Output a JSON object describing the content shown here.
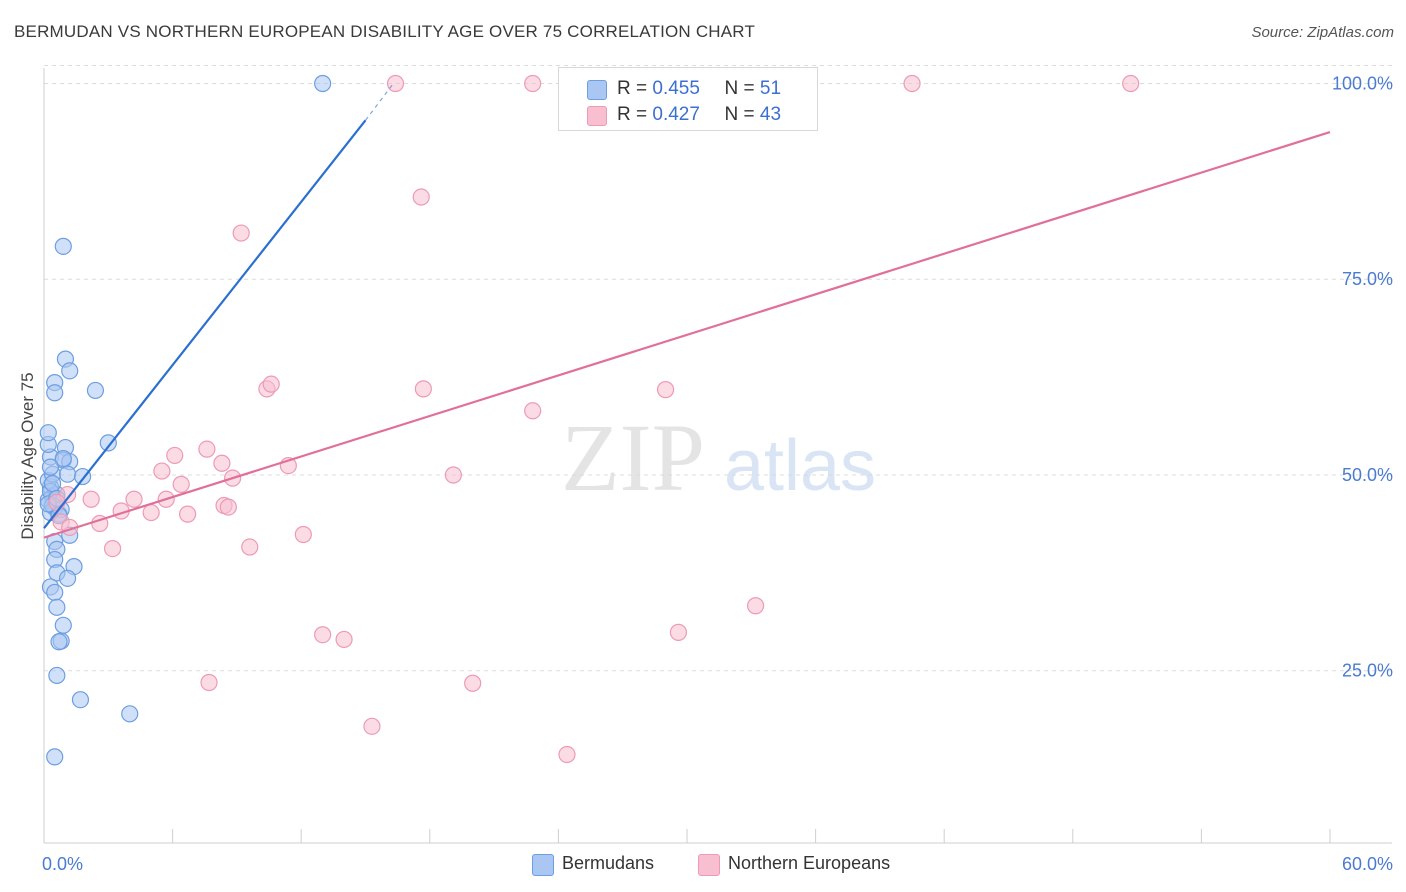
{
  "title": "BERMUDAN VS NORTHERN EUROPEAN DISABILITY AGE OVER 75 CORRELATION CHART",
  "source": "Source: ZipAtlas.com",
  "watermark": {
    "zip": "ZIP",
    "atlas": "atlas"
  },
  "legend_stats": {
    "r_label": "R =",
    "n_label": "N =",
    "rows": [
      {
        "r": "0.455",
        "n": "51"
      },
      {
        "r": "0.427",
        "n": "43"
      }
    ]
  },
  "chart_data": {
    "type": "scatter",
    "title": "BERMUDAN VS NORTHERN EUROPEAN DISABILITY AGE OVER 75 CORRELATION CHART",
    "ylabel": "Disability Age Over 75",
    "xlabel": "",
    "xlim": [
      0,
      60
    ],
    "ylim": [
      3,
      103
    ],
    "x_tick_labels": [
      "0.0%",
      "60.0%"
    ],
    "y_ticks": [
      25,
      50,
      75,
      100
    ],
    "y_tick_labels": [
      "25.0%",
      "50.0%",
      "75.0%",
      "100.0%"
    ],
    "grid": true,
    "legend_position": "bottom",
    "colors": {
      "Bermudans": {
        "fill": "#a9c7f2",
        "stroke": "#6d9ee0",
        "line": "#2b6fd0"
      },
      "Northern Europeans": {
        "fill": "#f7bfd0",
        "stroke": "#ee9ab4",
        "line": "#e0709a"
      }
    },
    "series": [
      {
        "name": "Bermudans",
        "r": 0.455,
        "n": 51,
        "trend": {
          "x": [
            0,
            15.0
          ],
          "y": [
            43.2,
            95.3
          ],
          "dash_to": [
            16.3,
            100
          ]
        },
        "points": [
          [
            0.3,
            48.5
          ],
          [
            0.4,
            47.2
          ],
          [
            0.2,
            46.8
          ],
          [
            0.5,
            45.8
          ],
          [
            0.3,
            45.2
          ],
          [
            0.6,
            47.5
          ],
          [
            0.2,
            49.3
          ],
          [
            0.4,
            50.1
          ],
          [
            0.3,
            52.3
          ],
          [
            0.2,
            53.9
          ],
          [
            0.2,
            55.4
          ],
          [
            0.5,
            61.8
          ],
          [
            0.5,
            60.5
          ],
          [
            1.0,
            64.8
          ],
          [
            1.2,
            63.3
          ],
          [
            2.4,
            60.8
          ],
          [
            3.0,
            54.1
          ],
          [
            1.0,
            53.5
          ],
          [
            0.9,
            51.9
          ],
          [
            1.2,
            51.7
          ],
          [
            1.1,
            50.1
          ],
          [
            1.8,
            49.8
          ],
          [
            0.4,
            46.1
          ],
          [
            0.7,
            45.0
          ],
          [
            0.8,
            45.6
          ],
          [
            0.5,
            41.5
          ],
          [
            1.2,
            42.3
          ],
          [
            0.6,
            40.5
          ],
          [
            1.4,
            38.3
          ],
          [
            0.5,
            39.2
          ],
          [
            0.6,
            37.5
          ],
          [
            1.1,
            36.8
          ],
          [
            0.3,
            35.7
          ],
          [
            0.5,
            35.0
          ],
          [
            0.6,
            33.1
          ],
          [
            0.9,
            30.8
          ],
          [
            0.8,
            28.8
          ],
          [
            0.7,
            28.7
          ],
          [
            0.6,
            24.4
          ],
          [
            1.7,
            21.3
          ],
          [
            4.0,
            19.5
          ],
          [
            0.5,
            14.0
          ],
          [
            0.9,
            79.2
          ],
          [
            13.0,
            100.0
          ],
          [
            0.3,
            47.9
          ],
          [
            0.4,
            48.9
          ],
          [
            0.2,
            46.3
          ],
          [
            0.7,
            44.8
          ],
          [
            0.9,
            52.1
          ],
          [
            0.3,
            51.0
          ],
          [
            0.6,
            47.0
          ]
        ]
      },
      {
        "name": "Northern Europeans",
        "r": 0.427,
        "n": 43,
        "trend": {
          "x": [
            0,
            60
          ],
          "y": [
            42.0,
            93.8
          ]
        },
        "points": [
          [
            16.4,
            100.0
          ],
          [
            22.8,
            100.0
          ],
          [
            40.5,
            100.0
          ],
          [
            50.7,
            100.0
          ],
          [
            17.6,
            85.5
          ],
          [
            9.2,
            80.9
          ],
          [
            10.4,
            61.0
          ],
          [
            10.6,
            61.6
          ],
          [
            17.7,
            61.0
          ],
          [
            29.0,
            60.9
          ],
          [
            22.8,
            58.2
          ],
          [
            6.1,
            52.5
          ],
          [
            7.6,
            53.3
          ],
          [
            5.5,
            50.5
          ],
          [
            8.3,
            51.5
          ],
          [
            11.4,
            51.2
          ],
          [
            19.1,
            50.0
          ],
          [
            6.4,
            48.8
          ],
          [
            8.8,
            49.6
          ],
          [
            4.2,
            46.9
          ],
          [
            5.7,
            46.9
          ],
          [
            2.2,
            46.9
          ],
          [
            8.4,
            46.1
          ],
          [
            3.6,
            45.4
          ],
          [
            5.0,
            45.2
          ],
          [
            6.7,
            45.0
          ],
          [
            8.6,
            45.9
          ],
          [
            1.1,
            47.5
          ],
          [
            0.8,
            44.0
          ],
          [
            2.6,
            43.8
          ],
          [
            1.2,
            43.3
          ],
          [
            12.1,
            42.4
          ],
          [
            3.2,
            40.6
          ],
          [
            9.6,
            40.8
          ],
          [
            13.0,
            29.6
          ],
          [
            14.0,
            29.0
          ],
          [
            29.6,
            29.9
          ],
          [
            33.2,
            33.3
          ],
          [
            7.7,
            23.5
          ],
          [
            20.0,
            23.4
          ],
          [
            15.3,
            17.9
          ],
          [
            24.4,
            14.3
          ],
          [
            0.6,
            46.5
          ]
        ]
      }
    ]
  }
}
